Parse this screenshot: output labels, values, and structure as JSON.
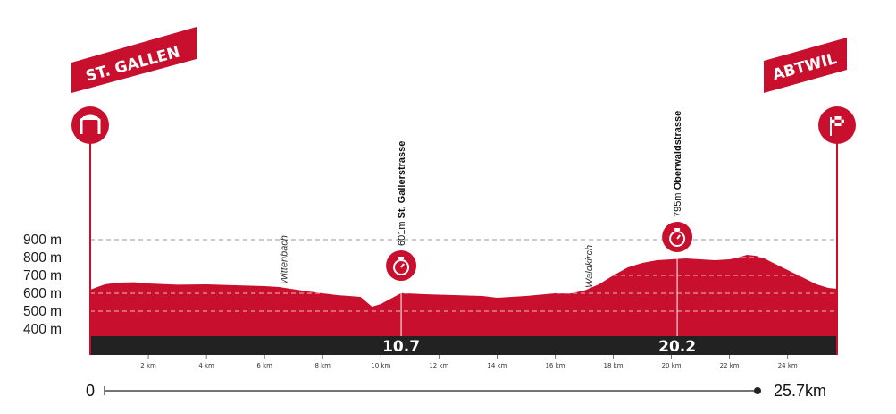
{
  "chart_data": {
    "type": "area",
    "title": "",
    "xlabel": "",
    "ylabel": "",
    "x_range_km": [
      0,
      25.7
    ],
    "ylim": [
      340,
      960
    ],
    "y_ticks": [
      900,
      800,
      700,
      600,
      500,
      400
    ],
    "y_tick_labels": [
      "900 m",
      "800 m",
      "700 m",
      "600 m",
      "500 m",
      "400 m"
    ],
    "x_ticks": [
      2,
      4,
      6,
      8,
      10,
      12,
      14,
      16,
      18,
      20,
      22,
      24
    ],
    "x_tick_labels": [
      "2 km",
      "4 km",
      "6 km",
      "8 km",
      "10 km",
      "12 km",
      "14 km",
      "16 km",
      "18 km",
      "20 km",
      "22 km",
      "24 km"
    ],
    "gridlines_m": [
      900,
      800,
      700,
      600,
      500
    ],
    "grid": "dashed",
    "fill_color": "#c8102e",
    "base_color": "#222222",
    "profile": {
      "x": [
        0,
        0.5,
        1.0,
        1.5,
        2.0,
        3.0,
        4.0,
        5.0,
        6.0,
        6.5,
        7.5,
        8.5,
        9.3,
        9.7,
        10.0,
        10.4,
        10.7,
        11.5,
        12.5,
        13.5,
        14.0,
        15.0,
        16.0,
        16.5,
        17.0,
        17.5,
        18.0,
        18.5,
        19.0,
        19.5,
        20.0,
        20.5,
        21.0,
        21.5,
        22.0,
        22.3,
        22.6,
        22.9,
        23.2,
        23.5,
        24.0,
        24.5,
        25.0,
        25.4,
        25.7
      ],
      "y": [
        620,
        650,
        660,
        662,
        655,
        648,
        650,
        645,
        640,
        635,
        610,
        590,
        580,
        525,
        540,
        575,
        601,
        595,
        590,
        585,
        575,
        585,
        600,
        598,
        615,
        650,
        700,
        745,
        770,
        785,
        790,
        795,
        790,
        785,
        790,
        800,
        815,
        810,
        795,
        770,
        730,
        690,
        650,
        630,
        625
      ]
    },
    "start": {
      "label": "ST. GALLEN",
      "km": 0,
      "icon": "start-arch-icon"
    },
    "finish": {
      "label": "ABTWIL",
      "km": 25.7,
      "icon": "finish-flag-icon"
    },
    "places": [
      {
        "name": "Wittenbach",
        "km": 6.6
      },
      {
        "name": "Waldkirch",
        "km": 17.1
      }
    ],
    "climbs": [
      {
        "km_label": "10.7",
        "km": 10.7,
        "altitude_label": "601m",
        "name": "St. Gallerstrasse",
        "elevation_m": 601,
        "icon": "stopwatch-icon"
      },
      {
        "km_label": "20.2",
        "km": 20.2,
        "altitude_label": "795m",
        "name": "Oberwaldstrasse",
        "elevation_m": 795,
        "icon": "stopwatch-icon"
      }
    ],
    "distance": {
      "start_label": "0",
      "end_label": "25.7km"
    }
  }
}
